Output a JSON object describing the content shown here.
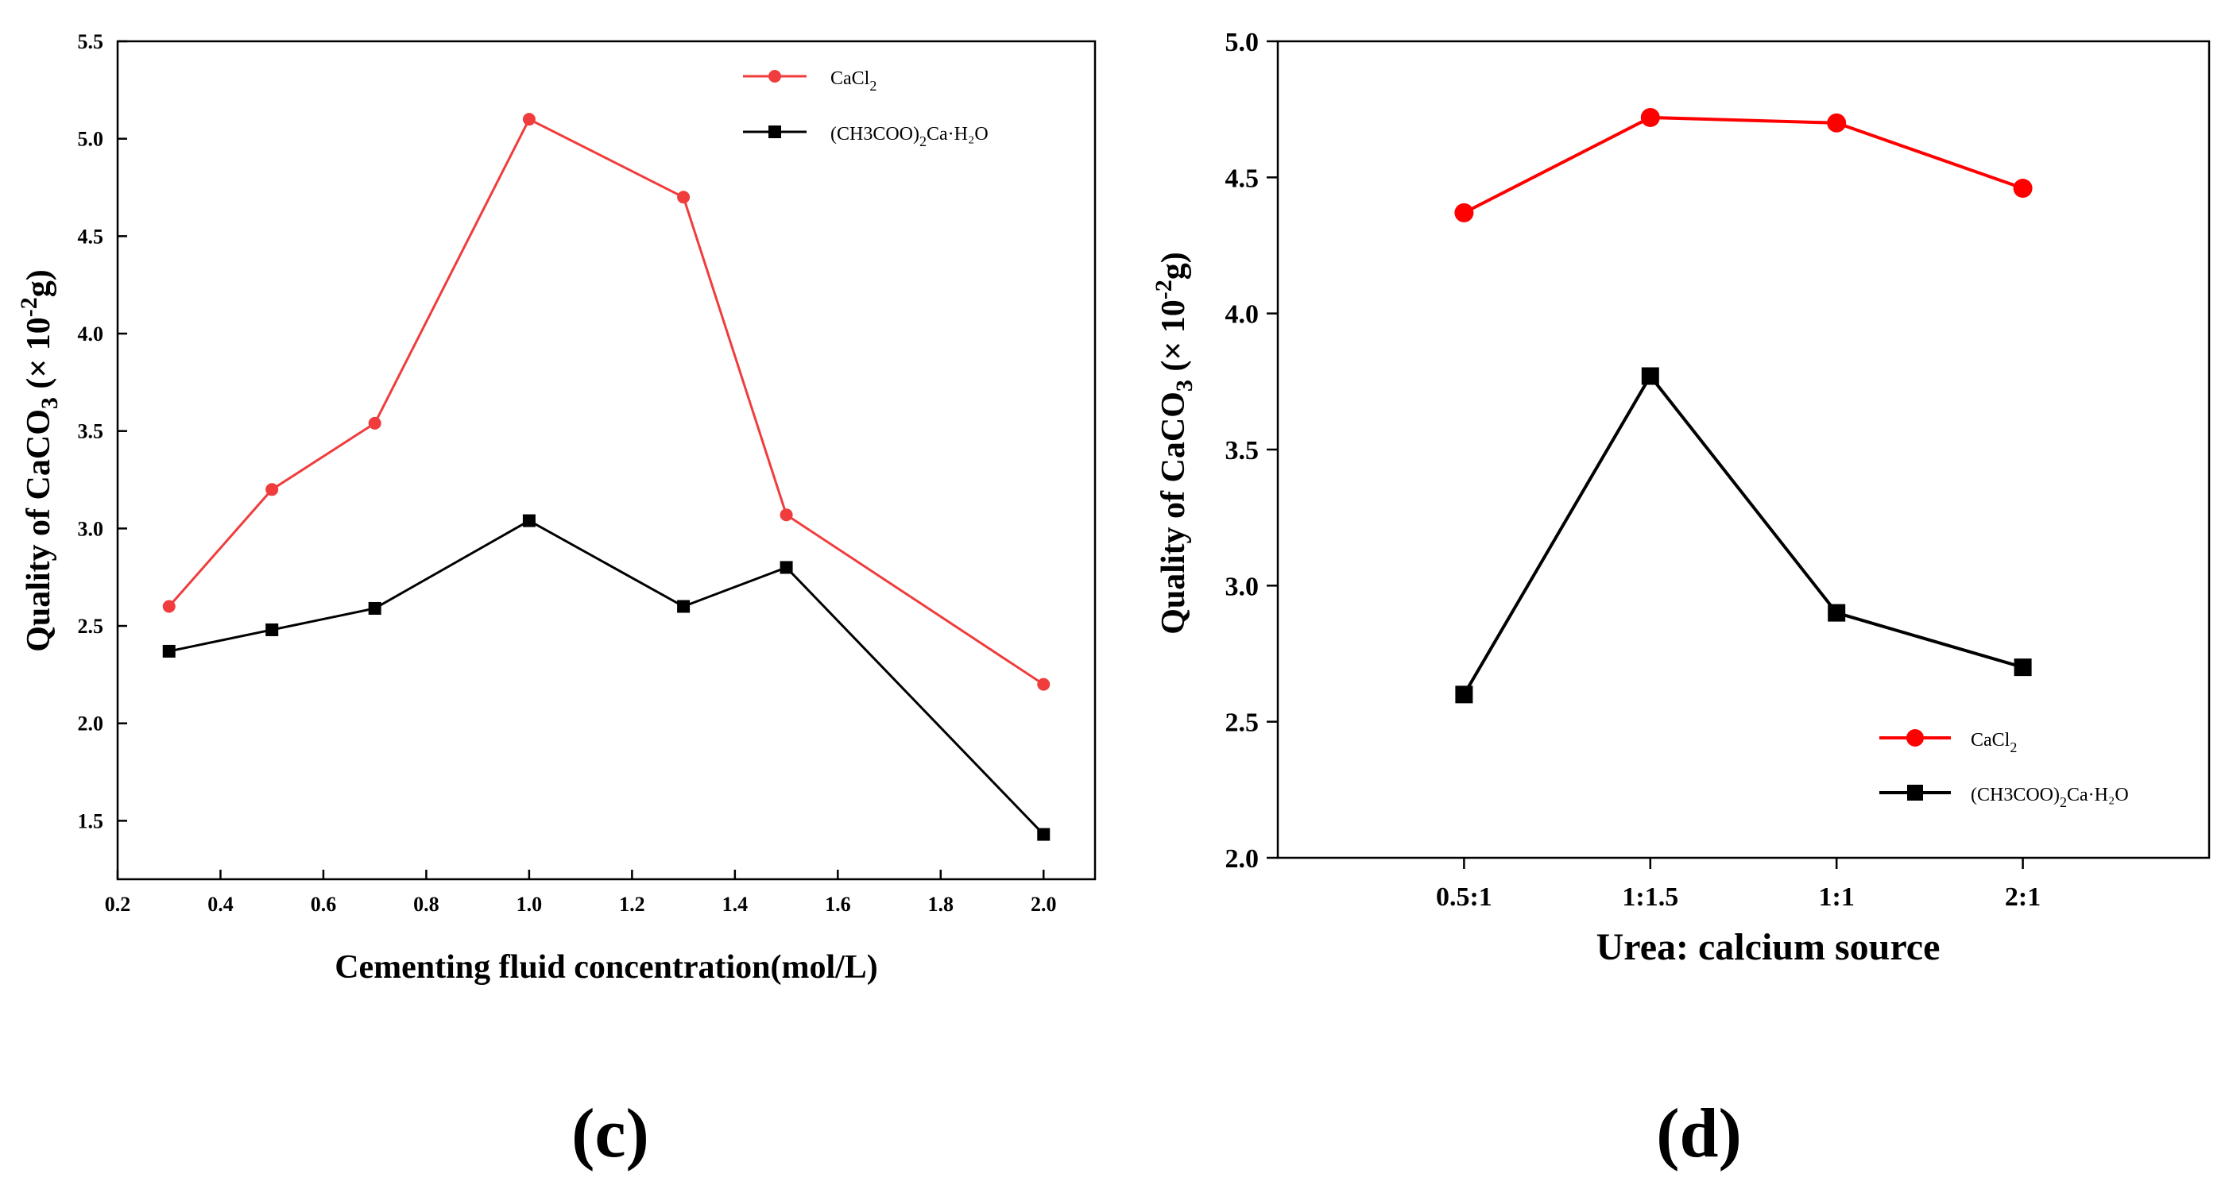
{
  "chart_data": [
    {
      "panel_label": "(c)",
      "type": "line",
      "xlabel": "Cementing fluid concentration(mol/L)",
      "ylabel": {
        "prefix": "Quality of CaCO",
        "sub": "3",
        "unit_open": " (× 10",
        "sup": "-2",
        "unit_close": "g)"
      },
      "x": [
        0.3,
        0.5,
        0.7,
        1.0,
        1.3,
        1.5,
        2.0
      ],
      "xlim": [
        0.2,
        2.1
      ],
      "ylim": [
        1.2,
        5.5
      ],
      "x_ticks": [
        "0.2",
        "0.4",
        "0.6",
        "0.8",
        "1.0",
        "1.2",
        "1.4",
        "1.6",
        "1.8",
        "2.0"
      ],
      "y_ticks": [
        "1.5",
        "2.0",
        "2.5",
        "3.0",
        "3.5",
        "4.0",
        "4.5",
        "5.0",
        "5.5"
      ],
      "legend_position": "top-right",
      "series": [
        {
          "name": "CaCl",
          "name_sub": "2",
          "name_suffix": "",
          "marker": "circle",
          "color": "#f03c3c",
          "values": [
            2.6,
            3.2,
            3.54,
            5.1,
            4.7,
            3.07,
            2.2
          ]
        },
        {
          "name": "(CH3COO)",
          "name_sub": "2",
          "name_suffix": "Ca·H₂O",
          "marker": "square",
          "color": "#000000",
          "values": [
            2.37,
            2.48,
            2.59,
            3.04,
            2.6,
            2.8,
            1.43
          ]
        }
      ]
    },
    {
      "panel_label": "(d)",
      "type": "line",
      "xlabel": "Urea: calcium source",
      "ylabel": {
        "prefix": "Quality of CaCO",
        "sub": "3",
        "unit_open": " (× 10",
        "sup": "-2",
        "unit_close": "g)"
      },
      "categories": [
        "0.5:1",
        "1:1.5",
        "1:1",
        "2:1"
      ],
      "ylim": [
        2.0,
        5.0
      ],
      "y_ticks": [
        "2.0",
        "2.5",
        "3.0",
        "3.5",
        "4.0",
        "4.5",
        "5.0"
      ],
      "legend_position": "bottom-right",
      "series": [
        {
          "name": "CaCl",
          "name_sub": "2",
          "name_suffix": "",
          "marker": "circle",
          "color": "#ff0000",
          "values": [
            4.37,
            4.72,
            4.7,
            4.46
          ]
        },
        {
          "name": "(CH3COO)",
          "name_sub": "2",
          "name_suffix": "Ca·H₂O",
          "marker": "square",
          "color": "#000000",
          "values": [
            2.6,
            3.77,
            2.9,
            2.7
          ]
        }
      ]
    }
  ]
}
